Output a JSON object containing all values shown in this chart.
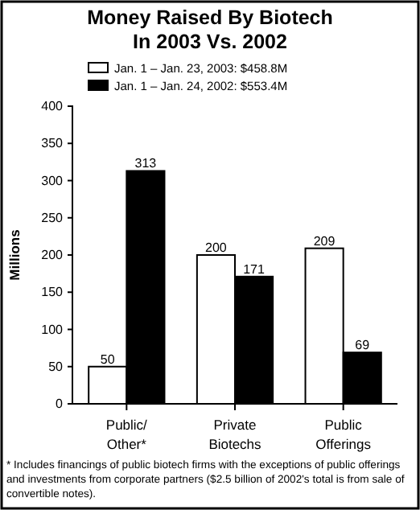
{
  "chart_data": {
    "type": "bar",
    "title": "Money Raised By Biotech\nIn 2003 Vs. 2002",
    "ylabel": "Millions",
    "categories": [
      "Public/ Other*",
      "Private Biotechs",
      "Public Offerings"
    ],
    "series": [
      {
        "name": "Jan. 1 – Jan. 23, 2003: $458.8M",
        "color": "#ffffff",
        "values": [
          50,
          200,
          209
        ]
      },
      {
        "name": "Jan. 1 – Jan. 24, 2002: $553.4M",
        "color": "#000000",
        "values": [
          313,
          171,
          69
        ]
      }
    ],
    "ylim": [
      0,
      400
    ],
    "yticks": [
      0,
      50,
      100,
      150,
      200,
      250,
      300,
      350,
      400
    ],
    "data_labels": true,
    "legend": "top left",
    "grid": false,
    "annotations": [
      "* Includes financings of public biotech firms with the exceptions of public offerings and investments from corporate partners ($2.5 billion of 2002's total is from sale of convertible notes)."
    ]
  }
}
